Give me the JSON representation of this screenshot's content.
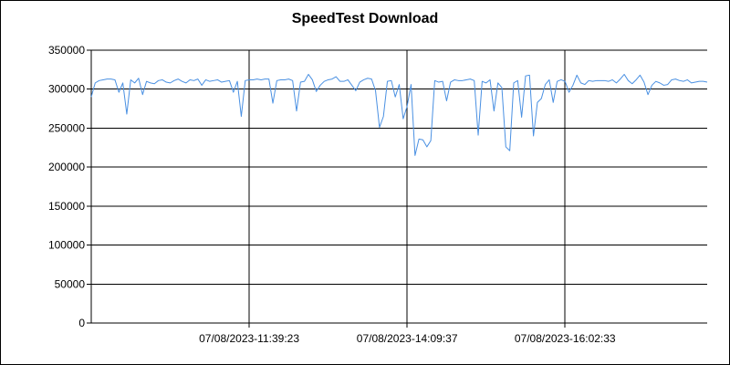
{
  "chart_data": {
    "type": "line",
    "title": "SpeedTest Download",
    "xlabel": "",
    "ylabel": "",
    "ylim": [
      0,
      350000
    ],
    "y_ticks": [
      "350000",
      "300000",
      "250000",
      "200000",
      "150000",
      "100000",
      "50000",
      "0"
    ],
    "x_tick_labels": [
      "07/08/2023-11:39:23",
      "07/08/2023-14:09:37",
      "07/08/2023-16:02:33"
    ],
    "x_tick_positions": [
      40,
      80,
      120
    ],
    "x_count": 157,
    "grid": true,
    "legend": "none",
    "series_color": "#4a90e2",
    "series": [
      {
        "values": [
          290000,
          308000,
          311000,
          312000,
          313000,
          313000,
          312000,
          296000,
          308000,
          268000,
          312000,
          308000,
          314000,
          293000,
          310000,
          308000,
          307000,
          311000,
          312000,
          309000,
          308000,
          311000,
          313000,
          310000,
          308000,
          312000,
          311000,
          313000,
          305000,
          312000,
          310000,
          311000,
          312000,
          309000,
          310000,
          311000,
          296000,
          310000,
          265000,
          311000,
          312000,
          312000,
          313000,
          312000,
          313000,
          313000,
          282000,
          311000,
          312000,
          312000,
          313000,
          311000,
          272000,
          309000,
          310000,
          319000,
          312000,
          297000,
          305000,
          310000,
          312000,
          313000,
          316000,
          310000,
          310000,
          312000,
          305000,
          298000,
          309000,
          312000,
          314000,
          313000,
          298000,
          251000,
          265000,
          310000,
          311000,
          290000,
          306000,
          262000,
          278000,
          306000,
          215000,
          236000,
          235000,
          226000,
          234000,
          311000,
          309000,
          310000,
          285000,
          309000,
          312000,
          311000,
          311000,
          312000,
          313000,
          311000,
          241000,
          310000,
          308000,
          312000,
          272000,
          308000,
          302000,
          226000,
          221000,
          308000,
          311000,
          264000,
          317000,
          318000,
          240000,
          283000,
          288000,
          306000,
          312000,
          283000,
          310000,
          312000,
          310000,
          296000,
          305000,
          318000,
          308000,
          306000,
          311000,
          310000,
          311000,
          311000,
          311000,
          310000,
          312000,
          308000,
          313000,
          319000,
          311000,
          307000,
          312000,
          318000,
          309000,
          293000,
          305000,
          310000,
          308000,
          305000,
          306000,
          312000,
          313000,
          311000,
          310000,
          312000,
          308000,
          309000,
          310000,
          310000,
          309000
        ]
      }
    ]
  }
}
